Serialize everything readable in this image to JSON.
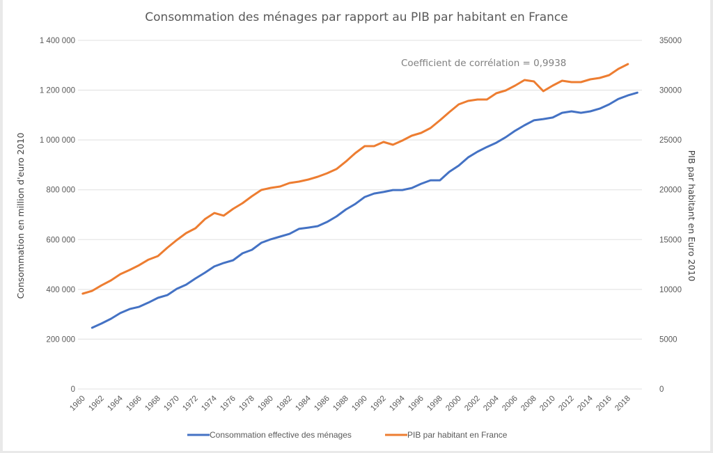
{
  "chart_data": {
    "type": "line",
    "title": "Consommation des ménages par rapport au PIB par habitant en France",
    "xlabel": "",
    "ylabel_left": "Consommation en million d'euro 2010",
    "ylabel_right": "PIB par habitant en Euro 2010",
    "ylim_left": [
      0,
      1400000
    ],
    "ylim_right": [
      0,
      35000
    ],
    "yticks_left": [
      "0",
      "200 000",
      "400 000",
      "600 000",
      "800 000",
      "1 000 000",
      "1 200 000",
      "1 400 000"
    ],
    "yticks_left_values": [
      0,
      200000,
      400000,
      600000,
      800000,
      1000000,
      1200000,
      1400000
    ],
    "yticks_right": [
      "0",
      "5000",
      "10000",
      "15000",
      "20000",
      "25000",
      "30000",
      "35000"
    ],
    "yticks_right_values": [
      0,
      5000,
      10000,
      15000,
      20000,
      25000,
      30000,
      35000
    ],
    "xlim": [
      1960,
      2019
    ],
    "xticks": [
      "1960",
      "1962",
      "1964",
      "1966",
      "1968",
      "1970",
      "1972",
      "1974",
      "1976",
      "1978",
      "1980",
      "1982",
      "1984",
      "1986",
      "1988",
      "1990",
      "1992",
      "1994",
      "1996",
      "1998",
      "2000",
      "2002",
      "2004",
      "2006",
      "2008",
      "2010",
      "2012",
      "2014",
      "2016",
      "2018"
    ],
    "grid": true,
    "legend_position": "bottom",
    "annotation": "Coefficient de corrélation = 0,9938",
    "series": [
      {
        "name": "Consommation effective des ménages",
        "axis": "left",
        "color": "#4472c4",
        "x": [
          1961,
          1962,
          1963,
          1964,
          1965,
          1966,
          1967,
          1968,
          1969,
          1970,
          1971,
          1972,
          1973,
          1974,
          1975,
          1976,
          1977,
          1978,
          1979,
          1980,
          1981,
          1982,
          1983,
          1984,
          1985,
          1986,
          1987,
          1988,
          1989,
          1990,
          1991,
          1992,
          1993,
          1994,
          1995,
          1996,
          1997,
          1998,
          1999,
          2000,
          2001,
          2002,
          2003,
          2004,
          2005,
          2006,
          2007,
          2008,
          2009,
          2010,
          2011,
          2012,
          2013,
          2014,
          2015,
          2016,
          2017,
          2018,
          2019
        ],
        "values": [
          246000,
          263000,
          282000,
          305000,
          321000,
          330000,
          347000,
          366000,
          377000,
          402000,
          419000,
          444000,
          467000,
          492000,
          506000,
          517000,
          545000,
          559000,
          587000,
          601000,
          612000,
          623000,
          643000,
          648000,
          654000,
          671000,
          693000,
          721000,
          743000,
          771000,
          785000,
          791000,
          799000,
          799000,
          807000,
          824000,
          838000,
          838000,
          872000,
          897000,
          930000,
          953000,
          972000,
          989000,
          1011000,
          1037000,
          1059000,
          1079000,
          1084000,
          1090000,
          1109000,
          1115000,
          1109000,
          1115000,
          1126000,
          1143000,
          1165000,
          1179000,
          1190000
        ]
      },
      {
        "name": "PIB par habitant en France",
        "axis": "right",
        "color": "#ed7d31",
        "x": [
          1960,
          1961,
          1962,
          1963,
          1964,
          1965,
          1966,
          1967,
          1968,
          1969,
          1970,
          1971,
          1972,
          1973,
          1974,
          1975,
          1976,
          1977,
          1978,
          1979,
          1980,
          1981,
          1982,
          1983,
          1984,
          1985,
          1986,
          1987,
          1988,
          1989,
          1990,
          1991,
          1992,
          1993,
          1994,
          1995,
          1996,
          1997,
          1998,
          1999,
          2000,
          2001,
          2002,
          2003,
          2004,
          2005,
          2006,
          2007,
          2008,
          2009,
          2010,
          2011,
          2012,
          2013,
          2014,
          2015,
          2016,
          2017,
          2018
        ],
        "values": [
          9570,
          9850,
          10400,
          10900,
          11530,
          11950,
          12430,
          12990,
          13340,
          14180,
          14950,
          15650,
          16140,
          17050,
          17670,
          17400,
          18090,
          18650,
          19350,
          19980,
          20190,
          20330,
          20680,
          20820,
          21030,
          21310,
          21660,
          22080,
          22840,
          23680,
          24380,
          24380,
          24800,
          24520,
          24940,
          25430,
          25710,
          26200,
          26970,
          27800,
          28570,
          28920,
          29060,
          29060,
          29690,
          29970,
          30460,
          31020,
          30880,
          29900,
          30460,
          30950,
          30810,
          30810,
          31090,
          31230,
          31510,
          32140,
          32620
        ]
      }
    ]
  }
}
